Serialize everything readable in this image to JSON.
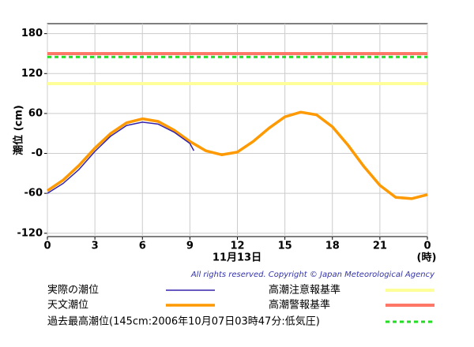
{
  "chart_data": {
    "type": "line",
    "y_label": "潮位 (cm)",
    "x_label": "11月13日",
    "x_unit": "(時)",
    "copyright": "All rights reserved. Copyright © Japan Meteorological Agency",
    "xlim": [
      0,
      24
    ],
    "xticks": [
      0,
      3,
      6,
      9,
      12,
      15,
      18,
      21,
      {
        "value": 24,
        "label": "0"
      }
    ],
    "ylim": [
      -125,
      195
    ],
    "yticks": [
      180,
      120,
      60,
      {
        "value": 0,
        "label": "-0"
      },
      -60,
      -120
    ],
    "grid": true,
    "series": [
      {
        "name": "実際の潮位",
        "color": "#3322aa",
        "width": 1.5,
        "x": [
          0,
          1,
          2,
          3,
          4,
          5,
          6,
          7,
          8,
          9,
          9.25
        ],
        "values": [
          -60,
          -45,
          -24,
          3,
          26,
          42,
          47,
          44,
          32,
          15,
          4
        ]
      },
      {
        "name": "天文潮位",
        "color": "#ff9900",
        "width": 3.5,
        "x": [
          0,
          1,
          2,
          3,
          4,
          5,
          6,
          7,
          8,
          9,
          10,
          11,
          12,
          13,
          14,
          15,
          16,
          17,
          18,
          19,
          20,
          21,
          22,
          23,
          24
        ],
        "values": [
          -56,
          -40,
          -18,
          8,
          30,
          46,
          52,
          48,
          35,
          18,
          4,
          -2,
          2,
          18,
          38,
          55,
          62,
          58,
          40,
          12,
          -20,
          -48,
          -66,
          -68,
          -62
        ]
      }
    ],
    "reference_lines": [
      {
        "name": "高潮注意報基準",
        "value": 105,
        "color": "#ffff99",
        "width": 4,
        "dashed": false
      },
      {
        "name": "高潮警報基準",
        "value": 150,
        "color": "#ff7766",
        "width": 4,
        "dashed": false
      },
      {
        "name": "過去最高潮位(145cm:2006年10月07日03時47分:低気圧)",
        "value": 145,
        "color": "#22dd22",
        "width": 3,
        "dashed": true
      }
    ]
  }
}
